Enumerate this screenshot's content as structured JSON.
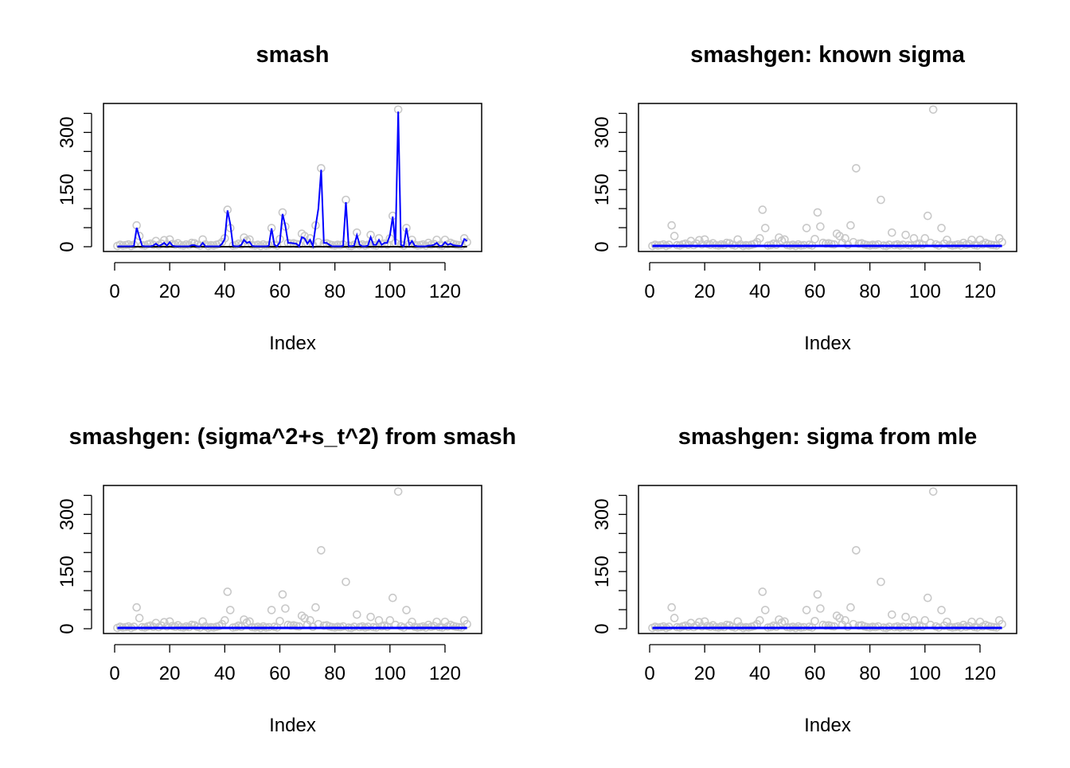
{
  "chart_data": {
    "type": "scatter",
    "xlabel": "Index",
    "ylabel": "",
    "xlim": [
      1,
      128
    ],
    "ylim": [
      0,
      360
    ],
    "x_ticks": [
      0,
      20,
      40,
      60,
      80,
      100,
      120
    ],
    "y_ticks": [
      0,
      50,
      100,
      150,
      200,
      250,
      300,
      350
    ],
    "y_tick_labels": [
      "0",
      "150",
      "300"
    ],
    "point_color": "#c8c8c8",
    "fit_color": "#0000ff",
    "truth_color": "#000000",
    "observed": [
      2,
      5,
      3,
      4,
      6,
      2,
      5,
      56,
      28,
      4,
      3,
      6,
      8,
      5,
      15,
      4,
      8,
      17,
      6,
      19,
      7,
      5,
      9,
      4,
      3,
      6,
      4,
      10,
      9,
      5,
      3,
      19,
      6,
      2,
      4,
      3,
      5,
      7,
      12,
      22,
      97,
      49,
      3,
      4,
      8,
      5,
      24,
      16,
      19,
      4,
      3,
      5,
      2,
      6,
      3,
      4,
      49,
      5,
      3,
      20,
      90,
      53,
      10,
      8,
      9,
      7,
      6,
      34,
      28,
      10,
      22,
      5,
      56,
      12,
      206,
      8,
      9,
      6,
      4,
      3,
      5,
      4,
      6,
      123,
      3,
      2,
      5,
      37,
      4,
      6,
      3,
      5,
      31,
      4,
      3,
      22,
      6,
      8,
      5,
      22,
      81,
      10,
      360,
      6,
      3,
      49,
      8,
      18,
      5,
      3,
      4,
      6,
      3,
      10,
      5,
      7,
      18,
      4,
      3,
      18,
      6,
      10,
      7,
      5,
      4,
      3,
      22,
      12
    ],
    "panels": [
      {
        "title": "smash",
        "truth": 0,
        "fit": [
          1,
          1,
          1,
          1,
          1,
          1,
          2,
          50,
          25,
          2,
          1,
          1,
          1,
          3,
          8,
          2,
          5,
          10,
          3,
          12,
          3,
          1,
          1,
          1,
          1,
          1,
          1,
          4,
          4,
          1,
          1,
          10,
          1,
          1,
          1,
          1,
          1,
          1,
          8,
          20,
          95,
          60,
          2,
          1,
          1,
          5,
          18,
          10,
          13,
          2,
          1,
          1,
          1,
          1,
          1,
          2,
          48,
          5,
          1,
          12,
          86,
          55,
          10,
          10,
          9,
          8,
          1,
          25,
          22,
          8,
          18,
          2,
          53,
          100,
          202,
          10,
          10,
          5,
          1,
          1,
          1,
          1,
          2,
          117,
          2,
          1,
          3,
          30,
          5,
          1,
          1,
          3,
          25,
          5,
          5,
          18,
          5,
          10,
          10,
          30,
          79,
          5,
          355,
          5,
          1,
          49,
          5,
          15,
          3,
          1,
          1,
          1,
          1,
          3,
          3,
          5,
          10,
          2,
          3,
          12,
          5,
          8,
          4,
          3,
          2,
          2,
          20,
          15
        ]
      },
      {
        "title": "smashgen: known sigma",
        "fit": 2
      },
      {
        "title": "smashgen: (sigma^2+s_t^2) from smash",
        "fit": 2
      },
      {
        "title": "smashgen: sigma from mle",
        "fit": 2
      }
    ]
  }
}
